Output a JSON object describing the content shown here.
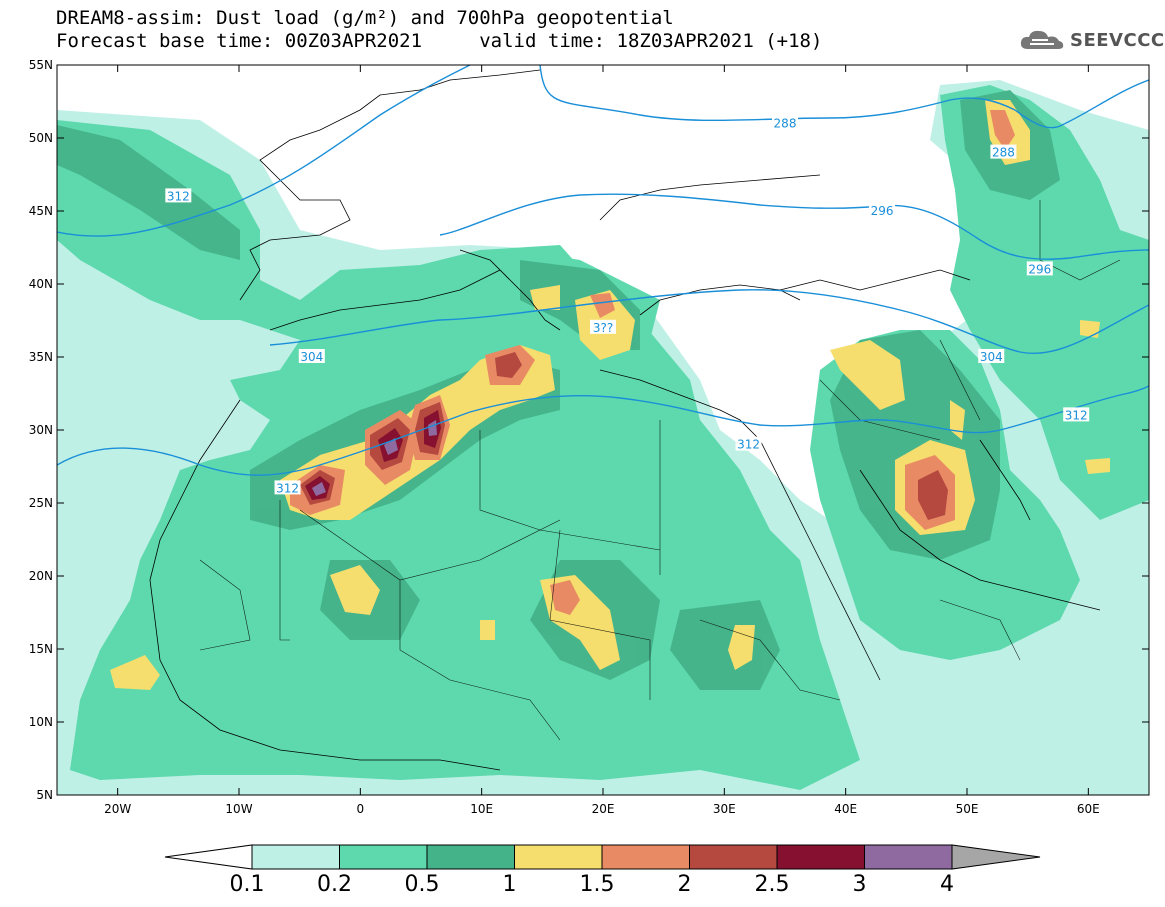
{
  "title": {
    "line1": "DREAM8-assim: Dust load (g/m²) and 700hPa geopotential",
    "line2": "Forecast base time: 00Z03APR2021     valid time: 18Z03APR2021 (+18)"
  },
  "logo": {
    "text": "SEEVCCC"
  },
  "map": {
    "lat_range": [
      5,
      55
    ],
    "lon_range": [
      -25,
      65
    ],
    "lat_ticks": [
      "55N",
      "50N",
      "45N",
      "40N",
      "35N",
      "30N",
      "25N",
      "20N",
      "15N",
      "10N",
      "5N"
    ],
    "lon_ticks": [
      "20W",
      "10W",
      "0",
      "10E",
      "20E",
      "30E",
      "40E",
      "50E",
      "60E"
    ],
    "contour_color": "#1a8fd8",
    "contour_labels": [
      {
        "text": "312",
        "lon": -15,
        "lat": 46
      },
      {
        "text": "288",
        "lon": 35,
        "lat": 51
      },
      {
        "text": "296",
        "lon": 43,
        "lat": 45
      },
      {
        "text": "288",
        "lon": 53,
        "lat": 49
      },
      {
        "text": "296",
        "lon": 56,
        "lat": 41
      },
      {
        "text": "304",
        "lon": -4,
        "lat": 35
      },
      {
        "text": "304",
        "lon": 52,
        "lat": 35
      },
      {
        "text": "3??",
        "lon": 20,
        "lat": 37
      },
      {
        "text": "312",
        "lon": 32,
        "lat": 29
      },
      {
        "text": "312",
        "lon": 59,
        "lat": 31
      },
      {
        "text": "312",
        "lon": -6,
        "lat": 26
      }
    ]
  },
  "colorbar": {
    "labels": [
      "0.1",
      "0.2",
      "0.5",
      "1",
      "1.5",
      "2",
      "2.5",
      "3",
      "4"
    ],
    "colors": [
      "#bff0e6",
      "#5dd9ad",
      "#45b38a",
      "#f5de6e",
      "#e88b64",
      "#b5483f",
      "#85102f",
      "#8e6aa0"
    ],
    "under_color": "#ffffff",
    "over_color": "#a6a6a6"
  }
}
